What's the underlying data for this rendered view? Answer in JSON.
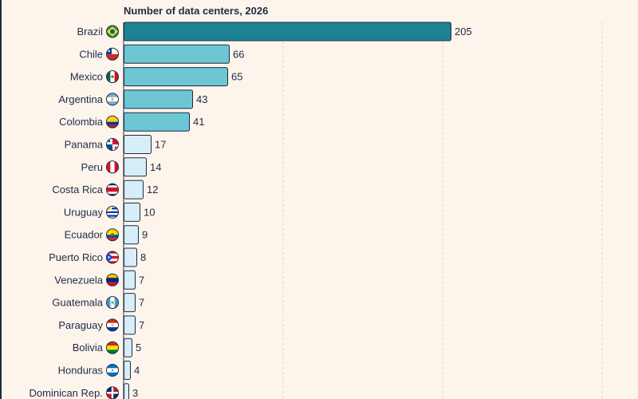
{
  "chart_data": {
    "type": "bar",
    "orientation": "horizontal",
    "title": "Number of data centers, 2026",
    "xlabel": "",
    "ylabel": "",
    "xlim": [
      0,
      300
    ],
    "grid": true,
    "categories": [
      "Brazil",
      "Chile",
      "Mexico",
      "Argentina",
      "Colombia",
      "Panama",
      "Peru",
      "Costa Rica",
      "Uruguay",
      "Ecuador",
      "Puerto Rico",
      "Venezuela",
      "Guatemala",
      "Paraguay",
      "Bolivia",
      "Honduras",
      "Dominican Rep."
    ],
    "values": [
      205,
      66,
      65,
      43,
      41,
      17,
      14,
      12,
      10,
      9,
      8,
      7,
      7,
      7,
      5,
      4,
      3
    ],
    "flag_icons": [
      "brazil-flag-icon",
      "chile-flag-icon",
      "mexico-flag-icon",
      "argentina-flag-icon",
      "colombia-flag-icon",
      "panama-flag-icon",
      "peru-flag-icon",
      "costa-rica-flag-icon",
      "uruguay-flag-icon",
      "ecuador-flag-icon",
      "puerto-rico-flag-icon",
      "venezuela-flag-icon",
      "guatemala-flag-icon",
      "paraguay-flag-icon",
      "bolivia-flag-icon",
      "honduras-flag-icon",
      "dominican-republic-flag-icon"
    ],
    "colors": {
      "top": "#1d8393",
      "upper_tier": "#6cc6d4",
      "lower_tier": "#d6eef7",
      "outline": "#1f2a44",
      "grid": "#d9d2c8",
      "background": "#fdf5ec",
      "text": "#1f2a44"
    }
  }
}
